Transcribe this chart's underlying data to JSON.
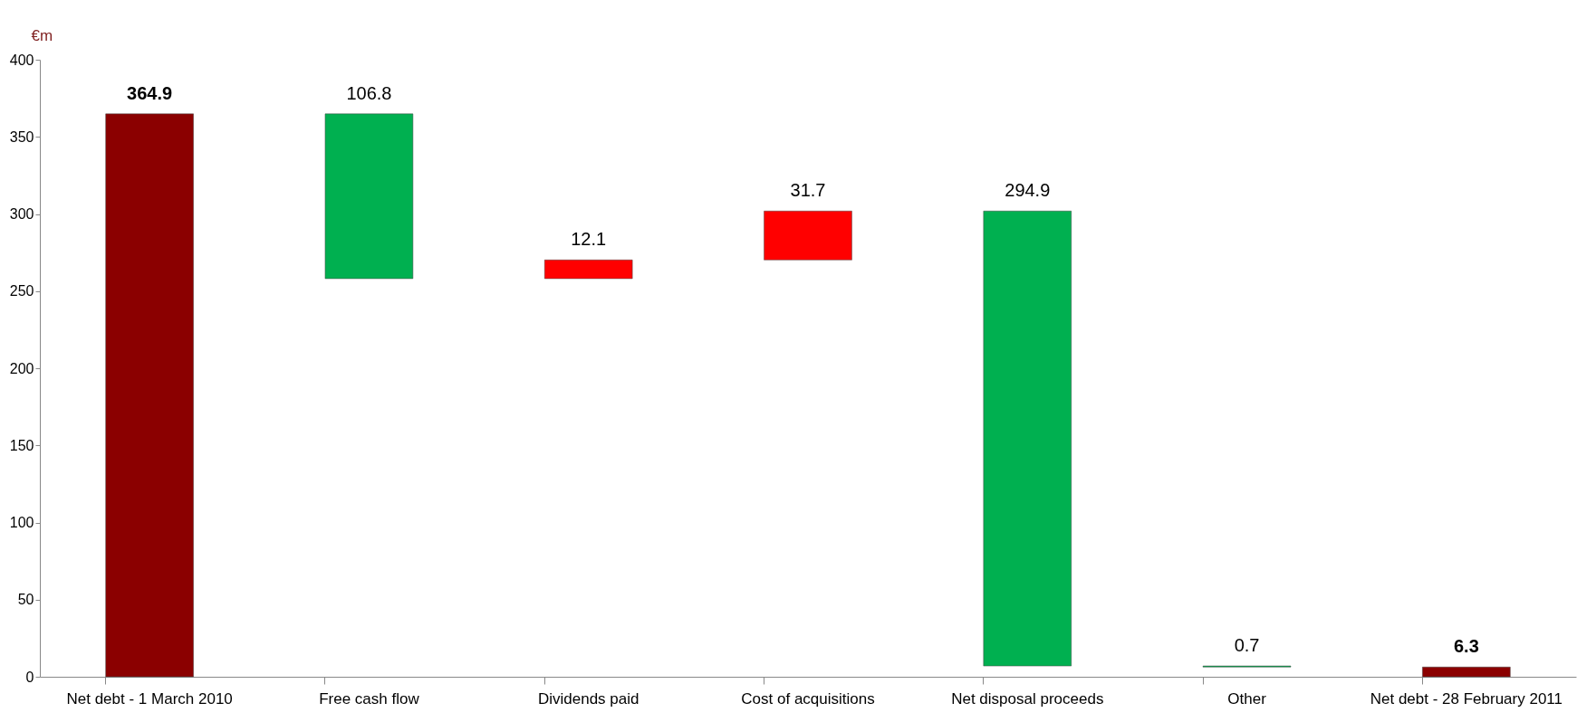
{
  "chart_data": {
    "type": "bar",
    "ylabel": "€m",
    "categories": [
      "Net debt - 1 March 2010",
      "Free cash flow",
      "Dividends paid",
      "Cost of acquisitions",
      "Net disposal proceeds",
      "Other",
      "Net debt - 28 February 2011"
    ],
    "values": [
      364.9,
      106.8,
      12.1,
      31.7,
      294.9,
      0.7,
      6.3
    ],
    "base": [
      0,
      258.1,
      258.1,
      270.2,
      7.0,
      6.3,
      0
    ],
    "colors": [
      "#8b0000",
      "#00b050",
      "#ff0000",
      "#ff0000",
      "#00b050",
      "#00b050",
      "#8b0000"
    ],
    "data_labels": true,
    "ylim": [
      0,
      400
    ],
    "yticks": [
      0,
      50,
      100,
      150,
      200,
      250,
      300,
      350,
      400
    ],
    "grid": false
  }
}
